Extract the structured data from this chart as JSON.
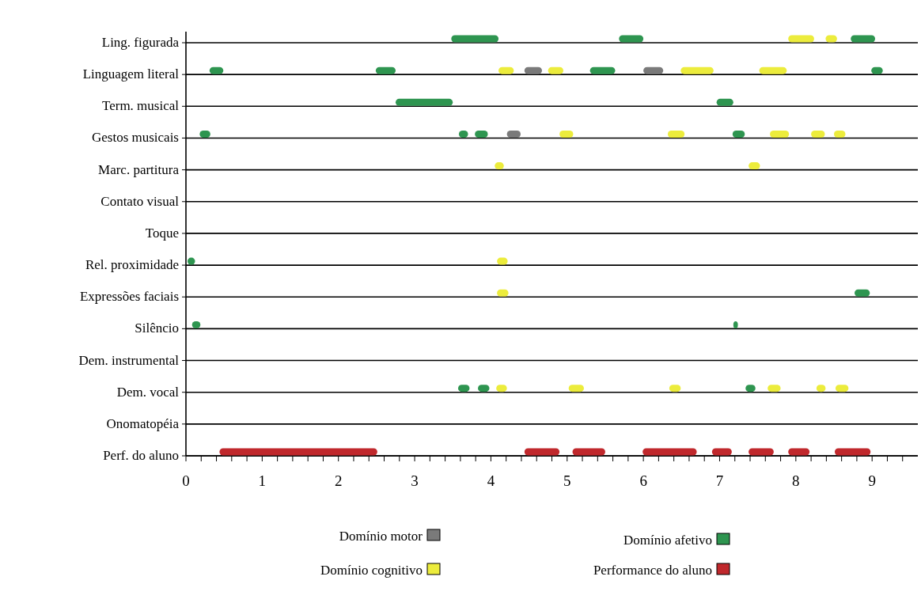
{
  "chart_data": {
    "type": "bar",
    "orientation": "horizontal",
    "categories": [
      "Ling. figurada",
      "Linguagem literal",
      "Term. musical",
      "Gestos musicais",
      "Marc. partitura",
      "Contato visual",
      "Toque",
      "Rel. proximidade",
      "Expressões faciais",
      "Silêncio",
      "Dem. instrumental",
      "Dem. vocal",
      "Onomatopéia",
      "Perf. do aluno"
    ],
    "xlim": [
      0,
      9.6
    ],
    "xticks": [
      0,
      {
        "value": 0.2,
        "label": null
      },
      {
        "value": 0.4,
        "label": null
      },
      {
        "value": 0.6,
        "label": null
      },
      {
        "value": 0.8,
        "label": null
      },
      1,
      {
        "value": 1.2,
        "label": null
      },
      {
        "value": 1.4,
        "label": null
      },
      {
        "value": 1.6,
        "label": null
      },
      {
        "value": 1.8,
        "label": null
      },
      2,
      {
        "value": 2.2,
        "label": null
      },
      {
        "value": 2.4,
        "label": null
      },
      {
        "value": 2.6,
        "label": null
      },
      {
        "value": 2.8,
        "label": null
      },
      3,
      {
        "value": 3.2,
        "label": null
      },
      {
        "value": 3.4,
        "label": null
      },
      {
        "value": 3.6,
        "label": null
      },
      {
        "value": 3.8,
        "label": null
      },
      4,
      {
        "value": 4.2,
        "label": null
      },
      {
        "value": 4.4,
        "label": null
      },
      {
        "value": 4.6,
        "label": null
      },
      {
        "value": 4.8,
        "label": null
      },
      5,
      {
        "value": 5.2,
        "label": null
      },
      {
        "value": 5.4,
        "label": null
      },
      {
        "value": 5.6,
        "label": null
      },
      {
        "value": 5.8,
        "label": null
      },
      6,
      {
        "value": 6.2,
        "label": null
      },
      {
        "value": 6.4,
        "label": null
      },
      {
        "value": 6.6,
        "label": null
      },
      {
        "value": 6.8,
        "label": null
      },
      7,
      {
        "value": 7.2,
        "label": null
      },
      {
        "value": 7.4,
        "label": null
      },
      {
        "value": 7.6,
        "label": null
      },
      {
        "value": 7.8,
        "label": null
      },
      8,
      {
        "value": 8.2,
        "label": null
      },
      {
        "value": 8.4,
        "label": null
      },
      {
        "value": 8.6,
        "label": null
      },
      {
        "value": 8.8,
        "label": null
      },
      9,
      {
        "value": 9.2,
        "label": null
      },
      {
        "value": 9.4,
        "label": null
      }
    ],
    "grid": "y",
    "legend": "bottom",
    "series": [
      {
        "name": "Domínio motor",
        "color": "#7a7a7a",
        "base": [
          null,
          4.44,
          null,
          4.21,
          null,
          null,
          null,
          null,
          null,
          null,
          null,
          null,
          null,
          null
        ],
        "values": [
          null,
          0.23,
          null,
          0.18,
          null,
          null,
          null,
          null,
          null,
          null,
          null,
          null,
          null,
          null
        ]
      },
      {
        "color": "#7a7a7a",
        "base": [
          null,
          6.0,
          null,
          null,
          null,
          null,
          null,
          null,
          null,
          null,
          null,
          null,
          null,
          null
        ],
        "values": [
          null,
          0.26,
          null,
          null,
          null,
          null,
          null,
          null,
          null,
          null,
          null,
          null,
          null,
          null
        ]
      },
      {
        "name": "Domínio cognitivo",
        "color": "#ecec3c",
        "base": [
          7.9,
          4.1,
          null,
          4.9,
          4.05,
          null,
          null,
          4.08,
          4.08,
          null,
          null,
          4.07,
          null,
          null
        ],
        "values": [
          0.34,
          0.2,
          null,
          0.18,
          0.12,
          null,
          null,
          0.14,
          0.15,
          null,
          null,
          0.14,
          null,
          null
        ]
      },
      {
        "color": "#ecec3c",
        "base": [
          8.39,
          4.75,
          null,
          6.32,
          7.38,
          null,
          null,
          null,
          null,
          null,
          null,
          5.02,
          null,
          null
        ],
        "values": [
          0.15,
          0.2,
          null,
          0.22,
          0.15,
          null,
          null,
          null,
          null,
          null,
          null,
          0.2,
          null,
          null
        ]
      },
      {
        "color": "#ecec3c",
        "base": [
          null,
          6.49,
          null,
          7.66,
          null,
          null,
          null,
          null,
          null,
          null,
          null,
          6.34,
          null,
          null
        ],
        "values": [
          null,
          0.43,
          null,
          0.25,
          null,
          null,
          null,
          null,
          null,
          null,
          null,
          0.15,
          null,
          null
        ]
      },
      {
        "color": "#ecec3c",
        "base": [
          null,
          7.52,
          null,
          8.2,
          null,
          null,
          null,
          null,
          null,
          null,
          null,
          7.63,
          null,
          null
        ],
        "values": [
          null,
          0.36,
          null,
          0.18,
          null,
          null,
          null,
          null,
          null,
          null,
          null,
          0.17,
          null,
          null
        ]
      },
      {
        "color": "#ecec3c",
        "base": [
          null,
          null,
          null,
          8.5,
          null,
          null,
          null,
          null,
          null,
          null,
          null,
          8.27,
          null,
          null
        ],
        "values": [
          null,
          null,
          null,
          0.15,
          null,
          null,
          null,
          null,
          null,
          null,
          null,
          0.12,
          null,
          null
        ]
      },
      {
        "color": "#ecec3c",
        "base": [
          null,
          null,
          null,
          null,
          null,
          null,
          null,
          null,
          null,
          null,
          null,
          8.52,
          null,
          null
        ],
        "values": [
          null,
          null,
          null,
          null,
          null,
          null,
          null,
          null,
          null,
          null,
          null,
          0.17,
          null,
          null
        ]
      },
      {
        "name": "Domínio afetivo",
        "color": "#2e9550",
        "base": [
          3.48,
          0.31,
          2.75,
          0.18,
          null,
          null,
          null,
          0.02,
          8.77,
          0.08,
          null,
          3.57,
          null,
          null
        ],
        "values": [
          0.62,
          0.18,
          0.75,
          0.14,
          null,
          null,
          null,
          0.1,
          0.2,
          0.11,
          null,
          0.15,
          null,
          null
        ]
      },
      {
        "color": "#2e9550",
        "base": [
          5.68,
          2.49,
          6.96,
          3.58,
          null,
          null,
          null,
          null,
          null,
          7.18,
          null,
          3.83,
          null,
          null
        ],
        "values": [
          0.32,
          0.26,
          0.22,
          0.12,
          null,
          null,
          null,
          null,
          null,
          0.06,
          null,
          0.15,
          null,
          null
        ]
      },
      {
        "color": "#2e9550",
        "base": [
          8.72,
          5.3,
          null,
          3.79,
          null,
          null,
          null,
          null,
          null,
          null,
          null,
          7.34,
          null,
          null
        ],
        "values": [
          0.32,
          0.33,
          null,
          0.17,
          null,
          null,
          null,
          null,
          null,
          null,
          null,
          0.13,
          null,
          null
        ]
      },
      {
        "color": "#2e9550",
        "base": [
          null,
          8.99,
          null,
          7.17,
          null,
          null,
          null,
          null,
          null,
          null,
          null,
          null,
          null,
          null
        ],
        "values": [
          null,
          0.15,
          null,
          0.16,
          null,
          null,
          null,
          null,
          null,
          null,
          null,
          null,
          null,
          null
        ]
      },
      {
        "name": "Performance do aluno",
        "color": "#c0282c",
        "base": [
          null,
          null,
          null,
          null,
          null,
          null,
          null,
          null,
          null,
          null,
          null,
          null,
          null,
          0.44
        ],
        "values": [
          null,
          null,
          null,
          null,
          null,
          null,
          null,
          null,
          null,
          null,
          null,
          null,
          null,
          2.07
        ]
      },
      {
        "color": "#c0282c",
        "base": [
          null,
          null,
          null,
          null,
          null,
          null,
          null,
          null,
          null,
          null,
          null,
          null,
          null,
          4.44
        ],
        "values": [
          null,
          null,
          null,
          null,
          null,
          null,
          null,
          null,
          null,
          null,
          null,
          null,
          null,
          0.46
        ]
      },
      {
        "color": "#c0282c",
        "base": [
          null,
          null,
          null,
          null,
          null,
          null,
          null,
          null,
          null,
          null,
          null,
          null,
          null,
          5.07
        ],
        "values": [
          null,
          null,
          null,
          null,
          null,
          null,
          null,
          null,
          null,
          null,
          null,
          null,
          null,
          0.43
        ]
      },
      {
        "color": "#c0282c",
        "base": [
          null,
          null,
          null,
          null,
          null,
          null,
          null,
          null,
          null,
          null,
          null,
          null,
          null,
          5.99
        ],
        "values": [
          null,
          null,
          null,
          null,
          null,
          null,
          null,
          null,
          null,
          null,
          null,
          null,
          null,
          0.71
        ]
      },
      {
        "color": "#c0282c",
        "base": [
          null,
          null,
          null,
          null,
          null,
          null,
          null,
          null,
          null,
          null,
          null,
          null,
          null,
          6.9
        ],
        "values": [
          null,
          null,
          null,
          null,
          null,
          null,
          null,
          null,
          null,
          null,
          null,
          null,
          null,
          0.26
        ]
      },
      {
        "color": "#c0282c",
        "base": [
          null,
          null,
          null,
          null,
          null,
          null,
          null,
          null,
          null,
          null,
          null,
          null,
          null,
          7.38
        ],
        "values": [
          null,
          null,
          null,
          null,
          null,
          null,
          null,
          null,
          null,
          null,
          null,
          null,
          null,
          0.33
        ]
      },
      {
        "color": "#c0282c",
        "base": [
          null,
          null,
          null,
          null,
          null,
          null,
          null,
          null,
          null,
          null,
          null,
          null,
          null,
          7.9
        ],
        "values": [
          null,
          null,
          null,
          null,
          null,
          null,
          null,
          null,
          null,
          null,
          null,
          null,
          null,
          0.28
        ]
      },
      {
        "color": "#c0282c",
        "base": [
          null,
          null,
          null,
          null,
          null,
          null,
          null,
          null,
          null,
          null,
          null,
          null,
          null,
          8.51
        ],
        "values": [
          null,
          null,
          null,
          null,
          null,
          null,
          null,
          null,
          null,
          null,
          null,
          null,
          null,
          0.47
        ]
      }
    ]
  }
}
